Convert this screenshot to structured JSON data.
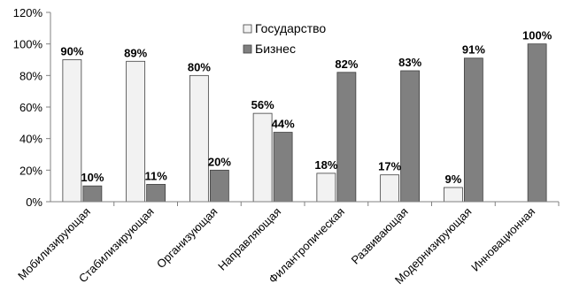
{
  "chart_data": {
    "type": "bar",
    "categories": [
      "Мобилизирующая",
      "Стабилизирующая",
      "Организующая",
      "Направляющая",
      "Филантропическая",
      "Развивающая",
      "Модернизирующая",
      "Инновационная"
    ],
    "series": [
      {
        "name": "Государство",
        "values": [
          90,
          89,
          80,
          56,
          18,
          17,
          9,
          null
        ],
        "color": "#f2f2f2"
      },
      {
        "name": "Бизнес",
        "values": [
          10,
          11,
          20,
          44,
          82,
          83,
          91,
          100
        ],
        "color": "#808080"
      }
    ],
    "data_labels": [
      [
        "90%",
        "89%",
        "80%",
        "56%",
        "18%",
        "17%",
        "9%",
        ""
      ],
      [
        "10%",
        "11%",
        "20%",
        "44%",
        "82%",
        "83%",
        "91%",
        "100%"
      ]
    ],
    "y_ticks": [
      0,
      20,
      40,
      60,
      80,
      100,
      120
    ],
    "y_tick_labels": [
      "0%",
      "20%",
      "40%",
      "60%",
      "80%",
      "100%",
      "120%"
    ],
    "ylim": [
      0,
      120
    ],
    "title": "",
    "xlabel": "",
    "ylabel": "",
    "grid": false,
    "legend_position": "top-center",
    "category_label_rotation": -45
  }
}
